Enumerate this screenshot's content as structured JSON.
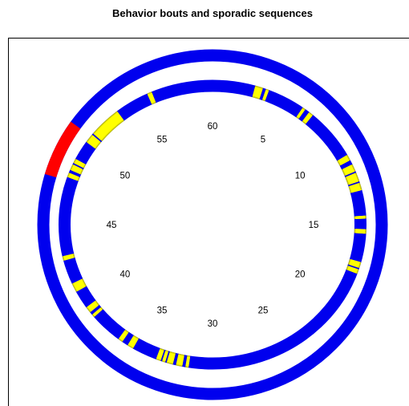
{
  "chart_data": {
    "type": "circular-timeline",
    "title": "Behavior bouts and sporadic sequences",
    "clock_labels": [
      "60",
      "5",
      "10",
      "15",
      "20",
      "25",
      "30",
      "35",
      "40",
      "45",
      "50",
      "55"
    ],
    "clock_values": [
      60,
      5,
      10,
      15,
      20,
      25,
      30,
      35,
      40,
      45,
      50,
      55
    ],
    "colors": {
      "ring": "#0000ee",
      "bout": "#ff0000",
      "sequence": "#ffff00",
      "sequence_edge": "#c8c800"
    },
    "outer_ring": {
      "name": "bouts",
      "bouts": [
        [
          47.8,
          51.0
        ]
      ]
    },
    "inner_ring": {
      "name": "sporadic sequences",
      "sequences": [
        [
          2.7,
          3.2
        ],
        [
          3.4,
          3.6
        ],
        [
          6.0,
          6.2
        ],
        [
          6.5,
          6.8
        ],
        [
          10.2,
          10.6
        ],
        [
          10.9,
          11.4
        ],
        [
          11.5,
          12.1
        ],
        [
          12.2,
          12.7
        ],
        [
          14.4,
          14.6
        ],
        [
          15.3,
          15.6
        ],
        [
          17.5,
          17.9
        ],
        [
          18.0,
          18.3
        ],
        [
          31.5,
          31.7
        ],
        [
          31.9,
          32.3
        ],
        [
          32.5,
          32.9
        ],
        [
          33.0,
          33.2
        ],
        [
          33.3,
          33.6
        ],
        [
          35.2,
          35.6
        ],
        [
          36.0,
          36.3
        ],
        [
          38.4,
          38.6
        ],
        [
          38.8,
          39.2
        ],
        [
          40.4,
          41.0
        ],
        [
          42.6,
          42.9
        ],
        [
          48.2,
          48.5
        ],
        [
          48.7,
          49.1
        ],
        [
          49.2,
          49.5
        ],
        [
          50.8,
          51.4
        ],
        [
          51.5,
          53.6
        ],
        [
          55.8,
          56.1
        ]
      ]
    }
  }
}
